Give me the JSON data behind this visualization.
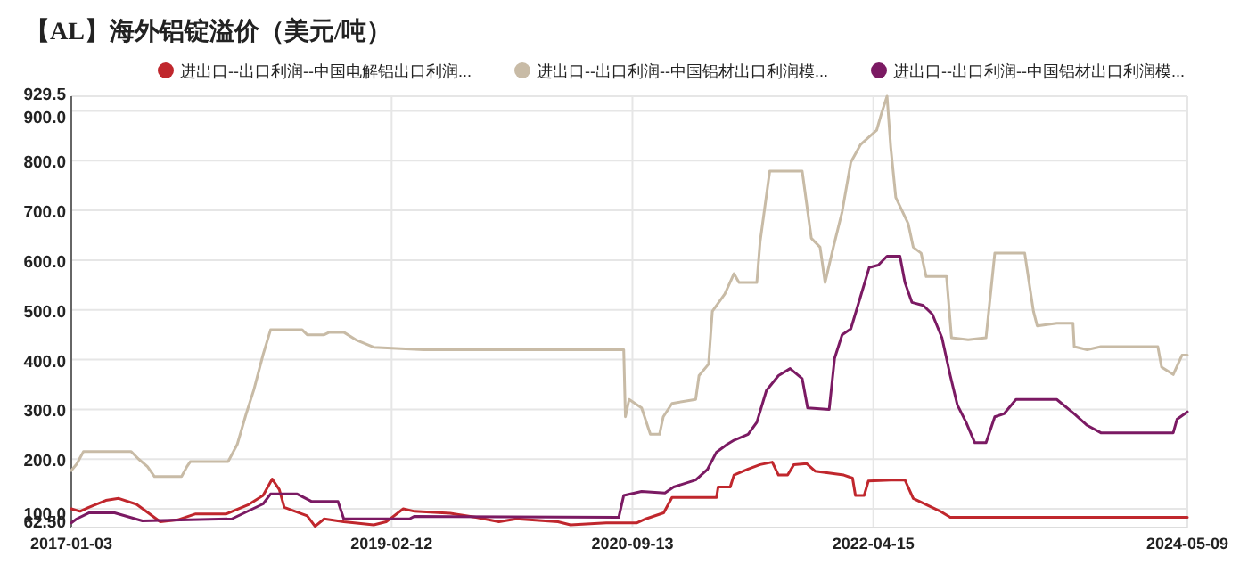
{
  "chart_data": {
    "type": "line",
    "title": "【AL】海外铝锭溢价（美元/吨）",
    "legend": "top",
    "grid": true,
    "marker": "none",
    "line_style": "solid",
    "xlim": [
      "2017-01-03",
      "2024-05-09"
    ],
    "xticks": [
      {
        "value": "2017-01-03",
        "label": "2017-01-03"
      },
      {
        "value": "2019-02-12",
        "label": "2019-02-12"
      },
      {
        "value": "2020-09-13",
        "label": "2020-09-13"
      },
      {
        "value": "2022-04-15",
        "label": "2022-04-15"
      },
      {
        "value": "2024-05-09",
        "label": "2024-05-09"
      }
    ],
    "ylim": [
      62.5,
      929.5
    ],
    "yticks": [
      {
        "value": 62.5,
        "label": "62.50"
      },
      {
        "value": 100,
        "label": "100.0"
      },
      {
        "value": 200,
        "label": "200.0"
      },
      {
        "value": 300,
        "label": "300.0"
      },
      {
        "value": 400,
        "label": "400.0"
      },
      {
        "value": 500,
        "label": "500.0"
      },
      {
        "value": 600,
        "label": "600.0"
      },
      {
        "value": 700,
        "label": "700.0"
      },
      {
        "value": 800,
        "label": "800.0"
      },
      {
        "value": 900,
        "label": "900.0"
      },
      {
        "value": 929.5,
        "label": "929.5"
      }
    ],
    "series": [
      {
        "name": "进出口--出口利润--中国电解铝出口利润...",
        "color": "#c0272d",
        "x": [
          "2017-01-03",
          "2017-01-24",
          "2017-02-14",
          "2017-03-27",
          "2017-04-27",
          "2017-06-09",
          "2017-08-05",
          "2017-09-16",
          "2017-10-29",
          "2018-01-11",
          "2018-03-06",
          "2018-04-09",
          "2018-05-01",
          "2018-05-18",
          "2018-05-30",
          "2018-07-24",
          "2018-08-12",
          "2018-09-03",
          "2018-10-20",
          "2018-12-31",
          "2019-01-30",
          "2019-03-12",
          "2019-04-08",
          "2019-07-03",
          "2019-09-03",
          "2019-10-28",
          "2019-12-09",
          "2020-03-18",
          "2020-04-17",
          "2020-07-12",
          "2020-09-24",
          "2020-10-15",
          "2020-11-27",
          "2020-12-17",
          "2021-04-03",
          "2021-04-07",
          "2021-05-06",
          "2021-05-15",
          "2021-06-18",
          "2021-07-17",
          "2021-08-15",
          "2021-08-30",
          "2021-09-21",
          "2021-10-06",
          "2021-11-06",
          "2021-11-26",
          "2022-02-03",
          "2022-02-24",
          "2022-03-03",
          "2022-03-24",
          "2022-04-03",
          "2022-05-27",
          "2022-06-30",
          "2022-07-20",
          "2022-09-21",
          "2022-10-17",
          "2024-05-09"
        ],
        "values": [
          100,
          95,
          103,
          117,
          121,
          109,
          74,
          78,
          90,
          90,
          109,
          127,
          160,
          139,
          103,
          86,
          65,
          80,
          74,
          68,
          74,
          100,
          95,
          91,
          83,
          74,
          80,
          74,
          68,
          72,
          72,
          80,
          92,
          123,
          123,
          144,
          144,
          168,
          180,
          189,
          194,
          168,
          168,
          189,
          191,
          176,
          168,
          162,
          127,
          127,
          156,
          158,
          158,
          121,
          96,
          83,
          83
        ]
      },
      {
        "name": "进出口--出口利润--中国铝材出口利润模...",
        "color": "#c8bba6",
        "x": [
          "2017-01-03",
          "2017-01-16",
          "2017-02-01",
          "2017-05-27",
          "2017-06-14",
          "2017-07-05",
          "2017-07-22",
          "2017-09-25",
          "2017-10-08",
          "2017-10-16",
          "2018-01-15",
          "2018-02-06",
          "2018-02-27",
          "2018-03-18",
          "2018-04-09",
          "2018-04-27",
          "2018-07-12",
          "2018-07-24",
          "2018-09-03",
          "2018-09-15",
          "2018-10-20",
          "2018-11-18",
          "2018-12-31",
          "2019-04-30",
          "2020-08-23",
          "2020-08-27",
          "2020-09-05",
          "2020-10-05",
          "2020-10-26",
          "2020-11-17",
          "2020-11-26",
          "2020-12-17",
          "2021-02-12",
          "2021-02-20",
          "2021-03-15",
          "2021-03-24",
          "2021-04-23",
          "2021-05-15",
          "2021-05-27",
          "2021-07-09",
          "2021-07-17",
          "2021-08-09",
          "2021-10-26",
          "2021-11-17",
          "2021-12-08",
          "2021-12-20",
          "2022-01-09",
          "2022-01-30",
          "2022-02-20",
          "2022-03-15",
          "2022-04-23",
          "2022-05-05",
          "2022-05-18",
          "2022-05-27",
          "2022-06-08",
          "2022-07-08",
          "2022-07-20",
          "2022-08-08",
          "2022-08-20",
          "2022-10-08",
          "2022-10-20",
          "2022-11-29",
          "2023-01-11",
          "2023-02-01",
          "2023-04-14",
          "2023-05-05",
          "2023-05-14",
          "2023-06-30",
          "2023-08-08",
          "2023-08-11",
          "2023-09-11",
          "2023-10-14",
          "2024-02-28",
          "2024-03-08",
          "2024-04-05",
          "2024-04-26",
          "2024-05-09"
        ],
        "values": [
          177,
          190,
          215,
          215,
          200,
          185,
          165,
          165,
          185,
          195,
          195,
          230,
          290,
          340,
          410,
          460,
          460,
          450,
          450,
          455,
          455,
          440,
          425,
          420,
          420,
          285,
          320,
          303,
          250,
          250,
          285,
          312,
          320,
          368,
          391,
          497,
          532,
          573,
          555,
          555,
          638,
          779,
          779,
          644,
          626,
          555,
          626,
          697,
          797,
          832,
          861,
          896,
          929.5,
          826,
          726,
          673,
          626,
          614,
          567,
          567,
          444,
          440,
          444,
          614,
          614,
          497,
          468,
          473,
          473,
          426,
          420,
          426,
          426,
          385,
          370,
          409,
          409
        ]
      },
      {
        "name": "进出口--出口利润--中国铝材出口利润模...",
        "color": "#7b1a63",
        "x": [
          "2017-01-03",
          "2017-01-16",
          "2017-02-14",
          "2017-04-17",
          "2017-06-23",
          "2018-01-24",
          "2018-04-09",
          "2018-04-27",
          "2018-06-30",
          "2018-08-03",
          "2018-10-06",
          "2018-10-20",
          "2019-03-27",
          "2019-04-08",
          "2020-08-11",
          "2020-08-23",
          "2020-10-05",
          "2020-11-30",
          "2020-12-21",
          "2021-02-12",
          "2021-03-12",
          "2021-04-03",
          "2021-04-29",
          "2021-05-15",
          "2021-06-18",
          "2021-07-09",
          "2021-08-01",
          "2021-08-30",
          "2021-09-27",
          "2021-10-26",
          "2021-11-08",
          "2021-12-30",
          "2022-01-12",
          "2022-01-30",
          "2022-02-20",
          "2022-03-15",
          "2022-04-05",
          "2022-04-27",
          "2022-05-18",
          "2022-06-18",
          "2022-06-30",
          "2022-07-17",
          "2022-08-13",
          "2022-09-04",
          "2022-09-27",
          "2022-10-17",
          "2022-11-03",
          "2022-11-24",
          "2022-12-15",
          "2023-01-11",
          "2023-02-01",
          "2023-02-23",
          "2023-03-24",
          "2023-06-30",
          "2023-08-11",
          "2023-09-11",
          "2023-10-14",
          "2024-04-05",
          "2024-04-14",
          "2024-05-09"
        ],
        "values": [
          72,
          80,
          92,
          92,
          76,
          80,
          110,
          130,
          130,
          115,
          115,
          80,
          80,
          85,
          83,
          127,
          135,
          132,
          144,
          158,
          179,
          214,
          230,
          238,
          250,
          274,
          338,
          368,
          382,
          362,
          303,
          300,
          403,
          450,
          462,
          526,
          585,
          590,
          608,
          608,
          555,
          515,
          509,
          491,
          444,
          368,
          309,
          274,
          233,
          233,
          285,
          291,
          320,
          320,
          291,
          268,
          253,
          253,
          280,
          295
        ]
      }
    ]
  }
}
